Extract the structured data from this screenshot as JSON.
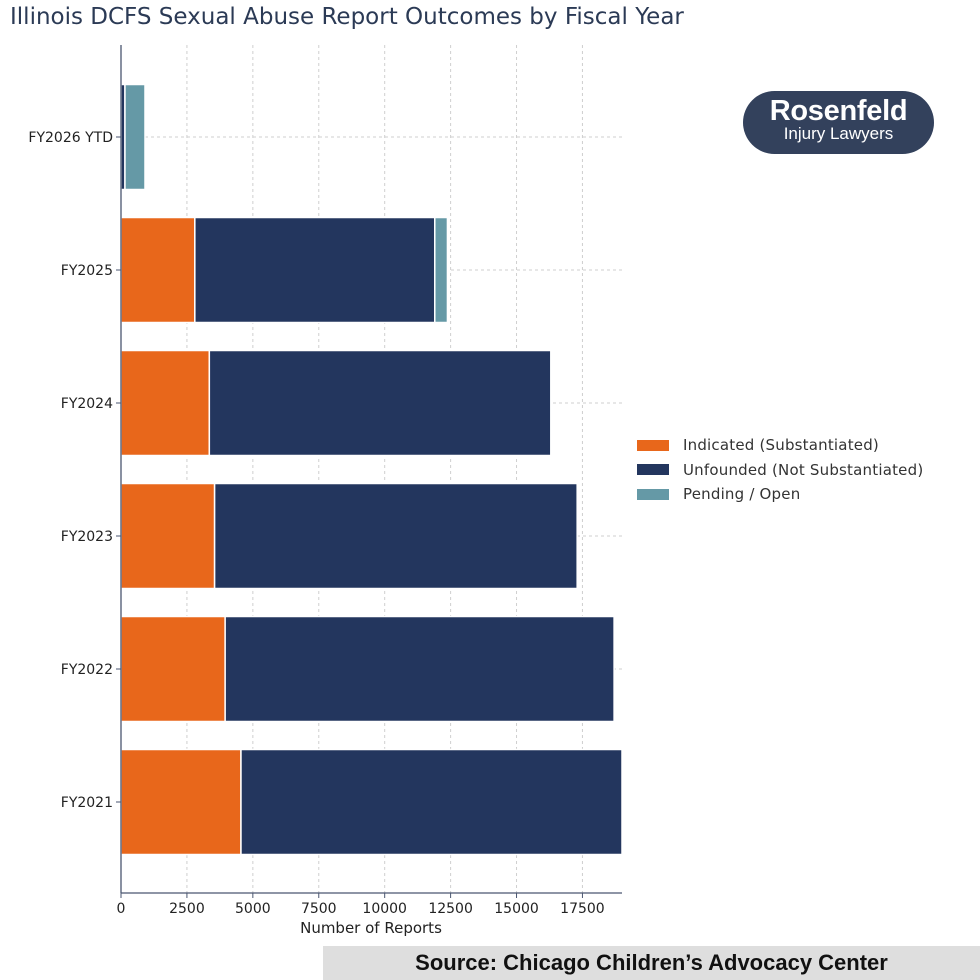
{
  "colors": {
    "indicated": "#e8671b",
    "unfounded": "#23365e",
    "pending": "#6599a6",
    "axis": "#4a5670",
    "grid": "#cfcfcf"
  },
  "logo": {
    "name": "Rosenfeld",
    "tagline": "Injury Lawyers"
  },
  "source": "Source: Chicago Children’s Advocacy Center",
  "chart_data": {
    "type": "bar",
    "orientation": "horizontal",
    "stacked": true,
    "title": "Illinois DCFS Sexual Abuse Report Outcomes by Fiscal Year",
    "xlabel": "Number of Reports",
    "ylabel": "",
    "xlim": [
      0,
      19000
    ],
    "xticks": [
      0,
      2500,
      5000,
      7500,
      10000,
      12500,
      15000,
      17500
    ],
    "xtick_labels": [
      "0",
      "2500",
      "5000",
      "7500",
      "10000",
      "12500",
      "15000",
      "17500"
    ],
    "grid": true,
    "legend_position": "center-right",
    "categories": [
      "FY2026 YTD",
      "FY2025",
      "FY2024",
      "FY2023",
      "FY2022",
      "FY2021"
    ],
    "series": [
      {
        "name": "Indicated (Substantiated)",
        "color_key": "indicated",
        "values": [
          0,
          2800,
          3350,
          3550,
          3950,
          4550
        ]
      },
      {
        "name": "Unfounded (Not Substantiated)",
        "color_key": "unfounded",
        "values": [
          150,
          9100,
          12950,
          13750,
          14750,
          14450
        ]
      },
      {
        "name": "Pending / Open",
        "color_key": "pending",
        "values": [
          760,
          480,
          0,
          0,
          0,
          0
        ]
      }
    ]
  }
}
